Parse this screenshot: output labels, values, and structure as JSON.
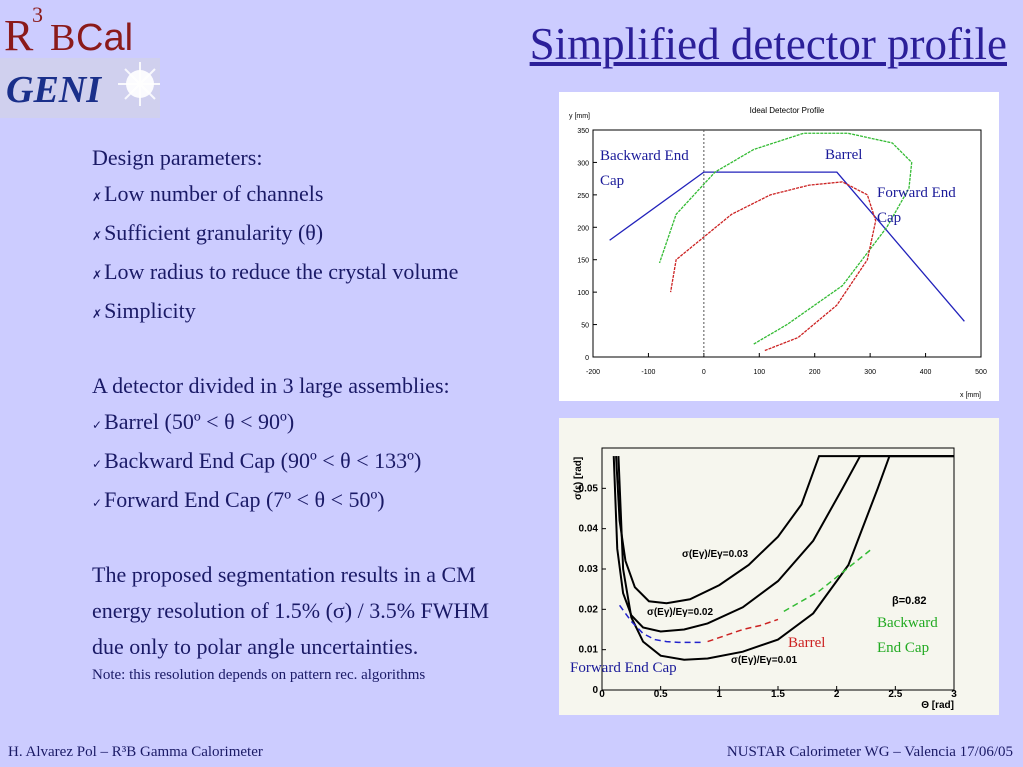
{
  "logos": {
    "r3bcal": "R3BCal",
    "geni": "GENI"
  },
  "title": "Simplified detector profile",
  "text": {
    "design_header": "Design parameters:",
    "design_items": [
      "Low number of channels",
      "Sufficient granularity (θ)",
      "Low radius to reduce the crystal volume",
      "Simplicity"
    ],
    "bullet_x": "✗",
    "bullet_check": "✓",
    "assemblies_header": "A detector divided in 3 large assemblies:",
    "assembly_items": [
      "Barrel (50º < θ < 90º)",
      "Backward End Cap (90º < θ < 133º)",
      "Forward End Cap (7º < θ < 50º)"
    ],
    "resolution_lines": [
      "The proposed segmentation results in a CM",
      "energy resolution of 1.5% (σ) / 3.5% FWHM",
      "due only to polar angle uncertainties."
    ],
    "note": "Note: this resolution depends on pattern rec. algorithms"
  },
  "footer": {
    "left": "H. Alvarez Pol – R³B Gamma Calorimeter",
    "right": "NUSTAR Calorimeter WG – Valencia 17/06/05"
  },
  "chart_data": [
    {
      "type": "line",
      "title": "Ideal Detector Profile",
      "xlabel": "x [mm]",
      "ylabel": "y [mm]",
      "xlim": [
        -200,
        500
      ],
      "ylim": [
        0,
        350
      ],
      "x_ticks": [
        "-200",
        "-100",
        "0",
        "100",
        "200",
        "300",
        "400",
        "500"
      ],
      "y_ticks": [
        "0",
        "50",
        "100",
        "150",
        "200",
        "250",
        "300",
        "350"
      ],
      "series": [
        {
          "name": "detector",
          "color": "#2222bb",
          "x": [
            -170,
            0,
            240,
            470
          ],
          "y": [
            180,
            285,
            285,
            55
          ]
        },
        {
          "name": "green",
          "color": "#33bb33",
          "x": [
            90,
            150,
            250,
            330,
            370,
            375,
            340,
            260,
            180,
            90,
            20,
            -50,
            -80
          ],
          "y": [
            20,
            50,
            110,
            200,
            260,
            300,
            330,
            345,
            345,
            320,
            285,
            220,
            145
          ]
        },
        {
          "name": "red",
          "color": "#cc2222",
          "x": [
            110,
            170,
            240,
            295,
            310,
            295,
            250,
            190,
            120,
            50,
            0,
            -50,
            -60
          ],
          "y": [
            10,
            30,
            80,
            150,
            210,
            250,
            270,
            265,
            250,
            220,
            185,
            150,
            100
          ]
        }
      ],
      "annotations": [
        {
          "text": "Backward End",
          "color": "#1a1a99"
        },
        {
          "text": "Cap",
          "color": "#1a1a99"
        },
        {
          "text": "Barrel",
          "color": "#1a1a99"
        },
        {
          "text": "Forward End",
          "color": "#1a1a99"
        },
        {
          "text": "Cap",
          "color": "#1a1a99"
        }
      ]
    },
    {
      "type": "line",
      "xlabel": "Θ [rad]",
      "ylabel": "σ(ε) [rad]",
      "xlim": [
        0,
        3
      ],
      "ylim": [
        0,
        0.06
      ],
      "x_ticks": [
        "0",
        "0.5",
        "1",
        "1.5",
        "2",
        "2.5",
        "3"
      ],
      "y_ticks": [
        "0",
        "0.01",
        "0.02",
        "0.03",
        "0.04",
        "0.05"
      ],
      "series": [
        {
          "name": "σ(Eγ)/Eγ=0.01",
          "color": "#000000",
          "x": [
            0.14,
            0.18,
            0.25,
            0.35,
            0.5,
            0.7,
            0.9,
            1.2,
            1.5,
            1.8,
            2.1,
            2.35,
            2.45,
            3.0
          ],
          "y": [
            0.058,
            0.03,
            0.018,
            0.012,
            0.0085,
            0.0075,
            0.0078,
            0.0095,
            0.0125,
            0.019,
            0.031,
            0.05,
            0.058,
            0.058
          ]
        },
        {
          "name": "σ(Eγ)/Eγ=0.02",
          "color": "#000000",
          "x": [
            0.1,
            0.13,
            0.18,
            0.25,
            0.35,
            0.5,
            0.7,
            0.9,
            1.2,
            1.5,
            1.8,
            2.05,
            2.2,
            3.0
          ],
          "y": [
            0.058,
            0.035,
            0.024,
            0.0185,
            0.0155,
            0.0145,
            0.015,
            0.0165,
            0.0205,
            0.027,
            0.037,
            0.05,
            0.058,
            0.058
          ]
        },
        {
          "name": "σ(Eγ)/Eγ=0.03",
          "color": "#000000",
          "x": [
            0.12,
            0.15,
            0.2,
            0.28,
            0.4,
            0.55,
            0.75,
            1.0,
            1.25,
            1.5,
            1.7,
            1.85,
            3.0
          ],
          "y": [
            0.058,
            0.042,
            0.032,
            0.0255,
            0.022,
            0.0215,
            0.0225,
            0.026,
            0.031,
            0.038,
            0.046,
            0.058,
            0.058
          ]
        },
        {
          "name": "Forward End Cap",
          "color": "#2222cc",
          "x": [
            0.15,
            0.25,
            0.35,
            0.45,
            0.55,
            0.65,
            0.75,
            0.85
          ],
          "y": [
            0.021,
            0.017,
            0.014,
            0.0125,
            0.012,
            0.0118,
            0.0118,
            0.0118
          ]
        },
        {
          "name": "Barrel",
          "color": "#cc2222",
          "x": [
            0.9,
            1.05,
            1.2,
            1.35,
            1.5
          ],
          "y": [
            0.012,
            0.0135,
            0.015,
            0.016,
            0.0175
          ]
        },
        {
          "name": "Backward End Cap",
          "color": "#33bb33",
          "x": [
            1.55,
            1.7,
            1.85,
            2.0,
            2.15,
            2.3
          ],
          "y": [
            0.0195,
            0.022,
            0.0245,
            0.028,
            0.0315,
            0.035
          ]
        }
      ],
      "annotations": [
        {
          "text": "σ(Eγ)/Eγ=0.03",
          "color": "#000000"
        },
        {
          "text": "σ(Eγ)/Eγ=0.02",
          "color": "#000000"
        },
        {
          "text": "σ(Eγ)/Eγ=0.01",
          "color": "#000000"
        },
        {
          "text": "β=0.82",
          "color": "#000000"
        },
        {
          "text": "Backward",
          "color": "#22aa22"
        },
        {
          "text": "End Cap",
          "color": "#22aa22"
        },
        {
          "text": "Barrel",
          "color": "#cc2222"
        },
        {
          "text": "Forward End Cap",
          "color": "#1a1a99"
        }
      ]
    }
  ]
}
